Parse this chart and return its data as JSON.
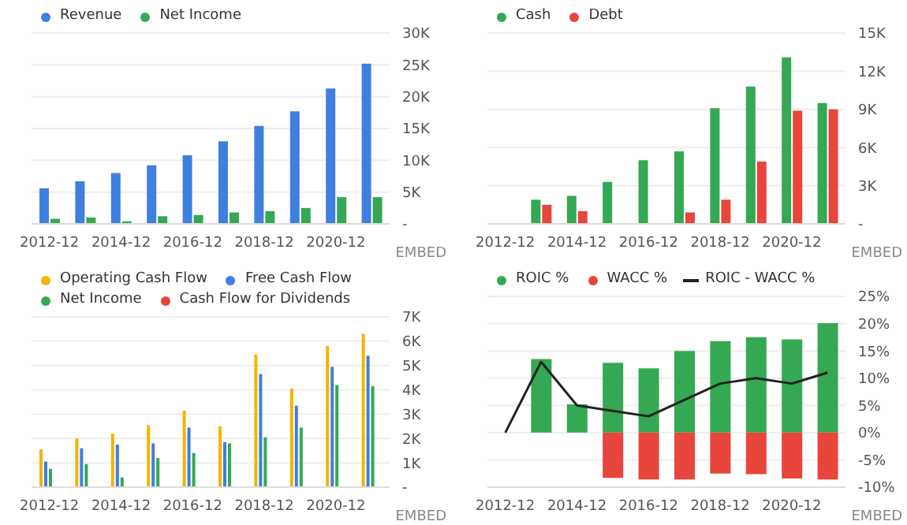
{
  "chart_data": [
    {
      "type": "bar",
      "categories": [
        "2012-12",
        null,
        "2014-12",
        null,
        "2016-12",
        null,
        "2018-12",
        null,
        "2020-12",
        null
      ],
      "series": [
        {
          "name": "Revenue",
          "color": "#3f7fe0",
          "values": [
            5600,
            6700,
            8000,
            9200,
            10800,
            13000,
            15400,
            17700,
            21300,
            25200
          ]
        },
        {
          "name": "Net Income",
          "color": "#34a853",
          "values": [
            800,
            1000,
            400,
            1200,
            1400,
            1800,
            2000,
            2500,
            4200,
            4200
          ]
        }
      ],
      "ylim": [
        0,
        30000
      ],
      "yticks": [
        {
          "value": 0,
          "label": "-"
        },
        {
          "value": 5000,
          "label": "5K"
        },
        {
          "value": 10000,
          "label": "10K"
        },
        {
          "value": 15000,
          "label": "15K"
        },
        {
          "value": 20000,
          "label": "20K"
        },
        {
          "value": 25000,
          "label": "25K"
        },
        {
          "value": 30000,
          "label": "30K"
        }
      ],
      "grid": "y",
      "legend": "top left",
      "annotations": [
        "EMBED"
      ]
    },
    {
      "type": "bar",
      "categories": [
        "2012-12",
        null,
        "2014-12",
        null,
        "2016-12",
        null,
        "2018-12",
        null,
        "2020-12",
        null
      ],
      "series": [
        {
          "name": "Cash",
          "color": "#34a853",
          "values": [
            0,
            1900,
            2200,
            3300,
            5000,
            5700,
            9100,
            10800,
            13100,
            9500
          ]
        },
        {
          "name": "Debt",
          "color": "#e8453c",
          "values": [
            0,
            1500,
            1000,
            0,
            0,
            900,
            1900,
            4900,
            8900,
            9000
          ]
        }
      ],
      "ylim": [
        0,
        15000
      ],
      "yticks": [
        {
          "value": 0,
          "label": "-"
        },
        {
          "value": 3000,
          "label": "3K"
        },
        {
          "value": 6000,
          "label": "6K"
        },
        {
          "value": 9000,
          "label": "9K"
        },
        {
          "value": 12000,
          "label": "12K"
        },
        {
          "value": 15000,
          "label": "15K"
        }
      ],
      "grid": "y",
      "legend": "top left",
      "annotations": [
        "EMBED"
      ]
    },
    {
      "type": "bar",
      "categories": [
        "2012-12",
        null,
        "2014-12",
        null,
        "2016-12",
        null,
        "2018-12",
        null,
        "2020-12",
        null
      ],
      "series": [
        {
          "name": "Operating Cash Flow",
          "color": "#f4b400",
          "values": [
            1550,
            2000,
            2200,
            2550,
            3150,
            2500,
            5450,
            4050,
            5800,
            6300
          ]
        },
        {
          "name": "Free Cash Flow",
          "color": "#3f7fe0",
          "values": [
            1050,
            1600,
            1750,
            1800,
            2450,
            1850,
            4650,
            3350,
            4950,
            5400
          ]
        },
        {
          "name": "Net Income",
          "color": "#34a853",
          "values": [
            750,
            950,
            400,
            1200,
            1400,
            1800,
            2050,
            2450,
            4200,
            4150
          ]
        },
        {
          "name": "Cash Flow for Dividends",
          "color": "#e8453c",
          "values": [
            null,
            null,
            null,
            null,
            null,
            null,
            null,
            null,
            null,
            null
          ]
        }
      ],
      "ylim": [
        0,
        7000
      ],
      "yticks": [
        {
          "value": 0,
          "label": "-"
        },
        {
          "value": 1000,
          "label": "1K"
        },
        {
          "value": 2000,
          "label": "2K"
        },
        {
          "value": 3000,
          "label": "3K"
        },
        {
          "value": 4000,
          "label": "4K"
        },
        {
          "value": 5000,
          "label": "5K"
        },
        {
          "value": 6000,
          "label": "6K"
        },
        {
          "value": 7000,
          "label": "7K"
        }
      ],
      "grid": "y",
      "legend": "top left",
      "annotations": [
        "EMBED"
      ]
    },
    {
      "type": "bar",
      "stacked": true,
      "categories": [
        "2012-12",
        null,
        "2014-12",
        null,
        "2016-12",
        null,
        "2018-12",
        null,
        "2020-12",
        null
      ],
      "series": [
        {
          "name": "ROIC %",
          "color": "#34a853",
          "values": [
            null,
            13.5,
            5.2,
            12.8,
            11.8,
            15,
            16.8,
            17.5,
            17.1,
            20.1
          ]
        },
        {
          "name": "WACC %",
          "color": "#e8453c",
          "values": [
            null,
            null,
            null,
            -8.3,
            -8.6,
            -8.6,
            -7.5,
            -7.6,
            -8.4,
            -8.6
          ]
        },
        {
          "name": "ROIC - WACC %",
          "type": "line",
          "color": "#222222",
          "values": [
            0,
            13,
            5,
            4,
            3,
            6,
            9,
            10,
            9,
            11
          ]
        }
      ],
      "ylim": [
        -10,
        25
      ],
      "yticks": [
        {
          "value": -10,
          "label": "-10%"
        },
        {
          "value": -5,
          "label": "-5%"
        },
        {
          "value": 0,
          "label": "0%"
        },
        {
          "value": 5,
          "label": "5%"
        },
        {
          "value": 10,
          "label": "10%"
        },
        {
          "value": 15,
          "label": "15%"
        },
        {
          "value": 20,
          "label": "20%"
        },
        {
          "value": 25,
          "label": "25%"
        }
      ],
      "grid": "y",
      "legend": "top left",
      "marker": "none",
      "line_style": "solid",
      "annotations": [
        "EMBED"
      ]
    }
  ]
}
